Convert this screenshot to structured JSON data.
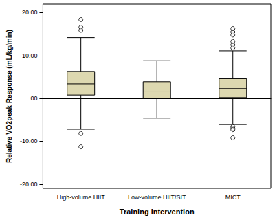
{
  "chart_data": {
    "type": "boxplot",
    "x_label": "Training Intervention",
    "y_label": "Relative VO2peak Response (mL/kg/min)",
    "categories": [
      "High-volume HIIT",
      "Low-volume HIIT/SIT",
      "MICT"
    ],
    "boxes": [
      {
        "min": -7.2,
        "q1": 0.8,
        "median": 3.4,
        "q3": 6.3,
        "max": 14.2
      },
      {
        "min": -4.6,
        "q1": 0.0,
        "median": 1.7,
        "q3": 3.9,
        "max": 8.8
      },
      {
        "min": -6.1,
        "q1": 0.2,
        "median": 2.3,
        "q3": 4.6,
        "max": 11.1
      }
    ],
    "outliers": [
      [
        18.4,
        16.6,
        15.9,
        -8.2,
        -11.3
      ],
      [],
      [
        11.8,
        12.5,
        13.3,
        14.8,
        15.5,
        16.3,
        -6.6,
        -7.0,
        -7.3,
        -9.2
      ]
    ],
    "color": "#ddd8b0",
    "ylim": [
      -21,
      22
    ],
    "yticks": [
      {
        "value": -20,
        "label": "-20.00"
      },
      {
        "value": -10,
        "label": "-10.00"
      },
      {
        "value": 0,
        "label": ".00"
      },
      {
        "value": 10,
        "label": "10.00"
      },
      {
        "value": 20,
        "label": "20.00"
      }
    ],
    "grid": false
  }
}
